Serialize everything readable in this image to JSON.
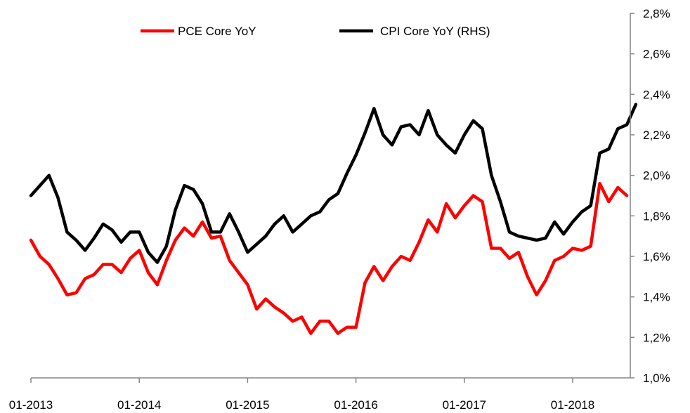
{
  "chart_data": {
    "type": "line",
    "title": "",
    "xlabel": "",
    "ylabel": "",
    "grid": false,
    "legend_position": "top-center",
    "x_tick_labels": [
      "01-2013",
      "01-2014",
      "01-2015",
      "01-2016",
      "01-2017",
      "01-2018"
    ],
    "x_start": "01-2013",
    "y_right": {
      "range": [
        1.0,
        2.8
      ],
      "ticks": [
        1.0,
        1.2,
        1.4,
        1.6,
        1.8,
        2.0,
        2.2,
        2.4,
        2.6,
        2.8
      ],
      "tick_labels": [
        "1,0%",
        "1,2%",
        "1,4%",
        "1,6%",
        "1,8%",
        "2,0%",
        "2,2%",
        "2,4%",
        "2,6%",
        "2,8%"
      ]
    },
    "series": [
      {
        "name": "PCE Core YoY",
        "color": "#ff0000",
        "values": [
          1.68,
          1.6,
          1.56,
          1.49,
          1.41,
          1.42,
          1.49,
          1.51,
          1.56,
          1.56,
          1.52,
          1.59,
          1.63,
          1.52,
          1.46,
          1.58,
          1.68,
          1.74,
          1.7,
          1.77,
          1.69,
          1.7,
          1.58,
          1.52,
          1.46,
          1.34,
          1.39,
          1.35,
          1.32,
          1.28,
          1.3,
          1.22,
          1.28,
          1.28,
          1.22,
          1.25,
          1.25,
          1.47,
          1.55,
          1.48,
          1.55,
          1.6,
          1.58,
          1.67,
          1.78,
          1.72,
          1.86,
          1.79,
          1.85,
          1.9,
          1.87,
          1.64,
          1.64,
          1.59,
          1.62,
          1.5,
          1.41,
          1.48,
          1.58,
          1.6,
          1.64,
          1.63,
          1.65,
          1.96,
          1.87,
          1.94,
          1.9
        ]
      },
      {
        "name": "CPI Core YoY (RHS)",
        "color": "#000000",
        "values": [
          1.9,
          1.95,
          2.0,
          1.89,
          1.72,
          1.68,
          1.63,
          1.69,
          1.76,
          1.73,
          1.67,
          1.72,
          1.72,
          1.62,
          1.57,
          1.65,
          1.83,
          1.95,
          1.93,
          1.86,
          1.72,
          1.72,
          1.81,
          1.72,
          1.62,
          1.66,
          1.7,
          1.76,
          1.8,
          1.72,
          1.76,
          1.8,
          1.82,
          1.88,
          1.91,
          2.01,
          2.1,
          2.21,
          2.33,
          2.2,
          2.15,
          2.24,
          2.25,
          2.2,
          2.32,
          2.2,
          2.15,
          2.11,
          2.2,
          2.27,
          2.23,
          2.0,
          1.87,
          1.72,
          1.7,
          1.69,
          1.68,
          1.69,
          1.77,
          1.71,
          1.77,
          1.82,
          1.85,
          2.11,
          2.13,
          2.23,
          2.25,
          2.35
        ]
      }
    ]
  }
}
